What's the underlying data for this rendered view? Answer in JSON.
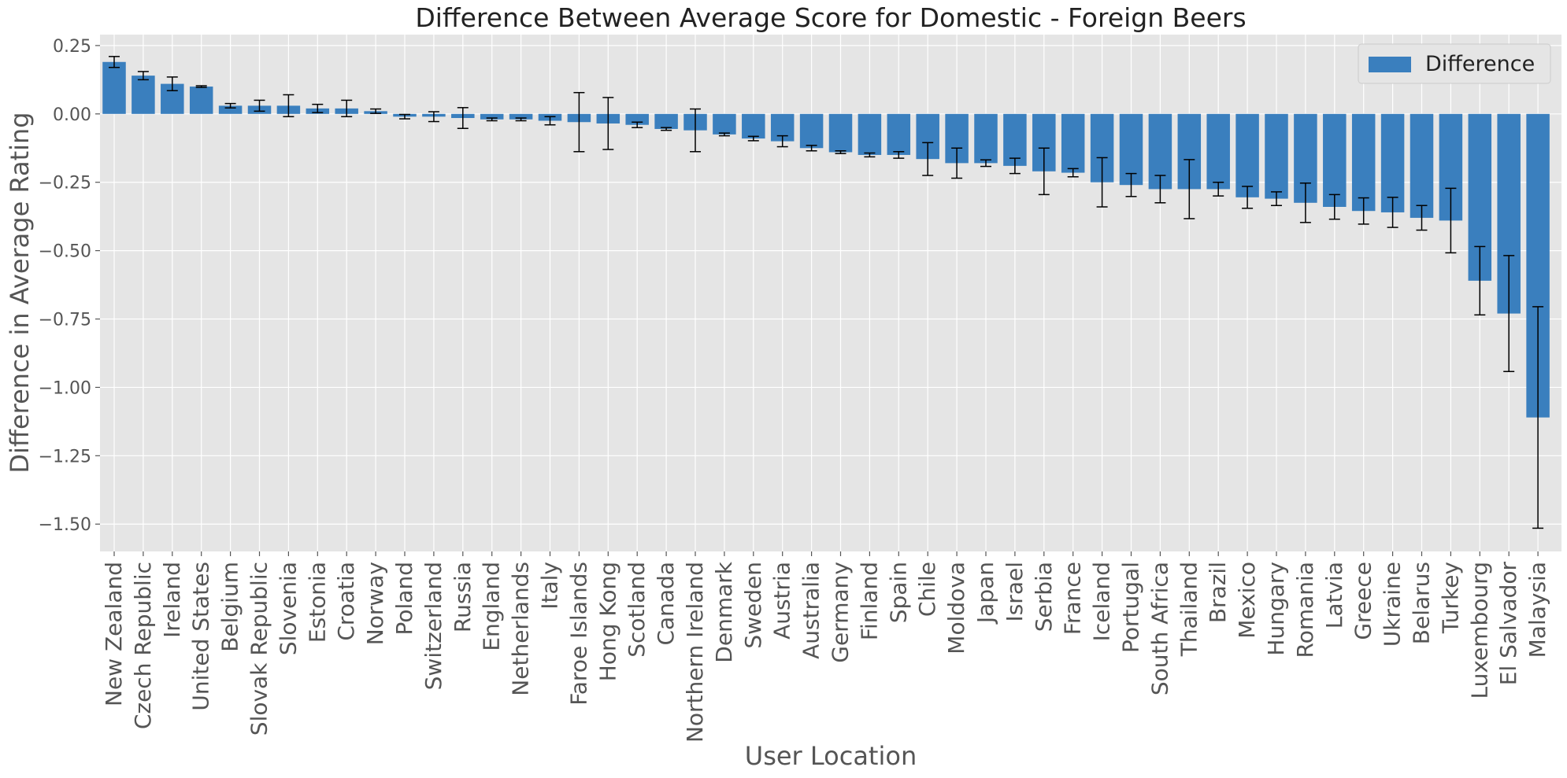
{
  "chart_data": {
    "type": "bar",
    "title": "Difference Between Average Score for Domestic - Foreign Beers",
    "xlabel": "User Location",
    "ylabel": "Difference in Average Rating",
    "ylim": [
      -1.6,
      0.29
    ],
    "yticks": [
      0.25,
      0.0,
      -0.25,
      -0.5,
      -0.75,
      -1.0,
      -1.25,
      -1.5
    ],
    "ytick_labels": [
      "0.25",
      "0.00",
      "−0.25",
      "−0.50",
      "−0.75",
      "−1.00",
      "−1.25",
      "−1.50"
    ],
    "grid": true,
    "legend_position": "top-right",
    "bar_color": "#3a7fbe",
    "series": [
      {
        "name": "Difference"
      }
    ],
    "categories": [
      "New Zealand",
      "Czech Republic",
      "Ireland",
      "United States",
      "Belgium",
      "Slovak Republic",
      "Slovenia",
      "Estonia",
      "Croatia",
      "Norway",
      "Poland",
      "Switzerland",
      "Russia",
      "England",
      "Netherlands",
      "Italy",
      "Faroe Islands",
      "Hong Kong",
      "Scotland",
      "Canada",
      "Northern Ireland",
      "Denmark",
      "Sweden",
      "Austria",
      "Australia",
      "Germany",
      "Finland",
      "Spain",
      "Chile",
      "Moldova",
      "Japan",
      "Israel",
      "Serbia",
      "France",
      "Iceland",
      "Portugal",
      "South Africa",
      "Thailand",
      "Brazil",
      "Mexico",
      "Hungary",
      "Romania",
      "Latvia",
      "Greece",
      "Ukraine",
      "Belarus",
      "Turkey",
      "Luxembourg",
      "El Salvador",
      "Malaysia"
    ],
    "values": [
      0.19,
      0.14,
      0.11,
      0.1,
      0.03,
      0.03,
      0.03,
      0.02,
      0.02,
      0.01,
      -0.01,
      -0.01,
      -0.015,
      -0.02,
      -0.02,
      -0.025,
      -0.03,
      -0.035,
      -0.04,
      -0.055,
      -0.06,
      -0.075,
      -0.09,
      -0.1,
      -0.125,
      -0.14,
      -0.15,
      -0.15,
      -0.165,
      -0.18,
      -0.18,
      -0.19,
      -0.21,
      -0.215,
      -0.25,
      -0.26,
      -0.275,
      -0.275,
      -0.275,
      -0.305,
      -0.31,
      -0.325,
      -0.34,
      -0.355,
      -0.36,
      -0.38,
      -0.39,
      -0.61,
      -0.73,
      -1.11
    ],
    "errors": [
      0.02,
      0.015,
      0.025,
      0.003,
      0.008,
      0.02,
      0.04,
      0.015,
      0.03,
      0.008,
      0.008,
      0.018,
      0.038,
      0.005,
      0.005,
      0.015,
      0.108,
      0.095,
      0.01,
      0.005,
      0.078,
      0.005,
      0.008,
      0.02,
      0.01,
      0.005,
      0.007,
      0.012,
      0.06,
      0.055,
      0.012,
      0.028,
      0.085,
      0.015,
      0.09,
      0.042,
      0.05,
      0.108,
      0.025,
      0.04,
      0.025,
      0.072,
      0.045,
      0.048,
      0.055,
      0.045,
      0.118,
      0.125,
      0.212,
      0.405
    ]
  }
}
